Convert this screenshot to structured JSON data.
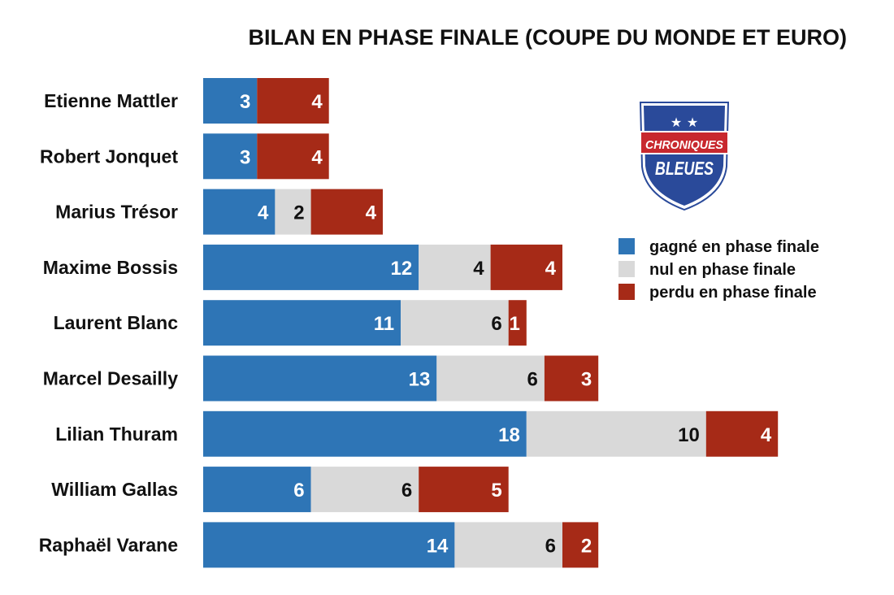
{
  "chart_data": {
    "type": "bar",
    "orientation": "horizontal",
    "stacked": true,
    "title": "BILAN EN PHASE FINALE (COUPE DU MONDE ET EURO)",
    "categories": [
      "Etienne Mattler",
      "Robert Jonquet",
      "Marius Trésor",
      "Maxime Bossis",
      "Laurent Blanc",
      "Marcel Desailly",
      "Lilian Thuram",
      "William Gallas",
      "Raphaël Varane"
    ],
    "series": [
      {
        "name": "gagné en phase finale",
        "color": "#2e75b6",
        "label_color": "#ffffff",
        "values": [
          3,
          3,
          4,
          12,
          11,
          13,
          18,
          6,
          14
        ]
      },
      {
        "name": "nul en phase finale",
        "color": "#d9d9d9",
        "label_color": "#111111",
        "values": [
          0,
          0,
          2,
          4,
          6,
          6,
          10,
          6,
          6
        ]
      },
      {
        "name": "perdu en phase finale",
        "color": "#a62a17",
        "label_color": "#ffffff",
        "values": [
          4,
          4,
          4,
          4,
          1,
          3,
          4,
          5,
          2
        ]
      }
    ],
    "legend_position": "right",
    "grid": false
  },
  "logo": {
    "line1": "CHRONIQUES",
    "line2": "BLEUES",
    "colors": {
      "shield": "#2a4a9a",
      "band": "#c8282e",
      "outline": "#ffffff"
    }
  }
}
